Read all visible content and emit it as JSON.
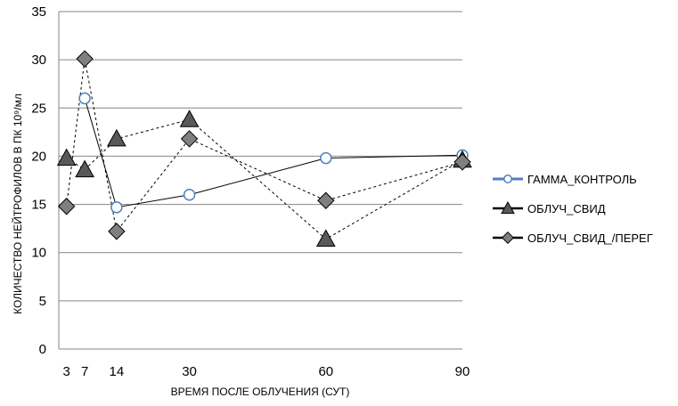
{
  "chart_data": {
    "type": "line",
    "title": "",
    "xlabel": "ВРЕМЯ  ПОСЛЕ ОБЛУЧЕНИЯ (СУТ)",
    "ylabel": "КОЛИЧЕСТВО  НЕЙТРОФИЛОВ  В ПК 10⁹/мл",
    "xlim": [
      0,
      90
    ],
    "ylim": [
      0,
      35
    ],
    "x_ticks": [
      3,
      7,
      14,
      30,
      60,
      90
    ],
    "y_ticks": [
      0,
      5,
      10,
      15,
      20,
      25,
      30,
      35
    ],
    "grid": "horizontal",
    "legend_position": "right",
    "series": [
      {
        "name": "ГАММА_КОНТРОЛЬ",
        "marker": "circle",
        "line_style": "solid",
        "marker_color": "#4f81bd",
        "line_color": "#000000",
        "legend_color": "#4f81bd",
        "points": [
          [
            7,
            26.0
          ],
          [
            14,
            14.7
          ],
          [
            30,
            16.0
          ],
          [
            60,
            19.8
          ],
          [
            90,
            20.1
          ]
        ]
      },
      {
        "name": "ОБЛУЧ_СВИД",
        "marker": "triangle",
        "line_style": "dashed",
        "marker_color": "#595959",
        "line_color": "#000000",
        "legend_color": "#000000",
        "points": [
          [
            3,
            19.8
          ],
          [
            7,
            18.6
          ],
          [
            14,
            21.8
          ],
          [
            30,
            23.8
          ],
          [
            60,
            11.4
          ],
          [
            90,
            19.6
          ]
        ]
      },
      {
        "name": "ОБЛУЧ_СВИД_/ПЕРЕГ",
        "marker": "diamond",
        "line_style": "dashed",
        "marker_color": "#7f7f7f",
        "line_color": "#000000",
        "legend_color": "#000000",
        "points": [
          [
            3,
            14.8
          ],
          [
            7,
            30.1
          ],
          [
            14,
            12.2
          ],
          [
            30,
            21.8
          ],
          [
            60,
            15.4
          ],
          [
            90,
            19.4
          ]
        ]
      }
    ]
  }
}
